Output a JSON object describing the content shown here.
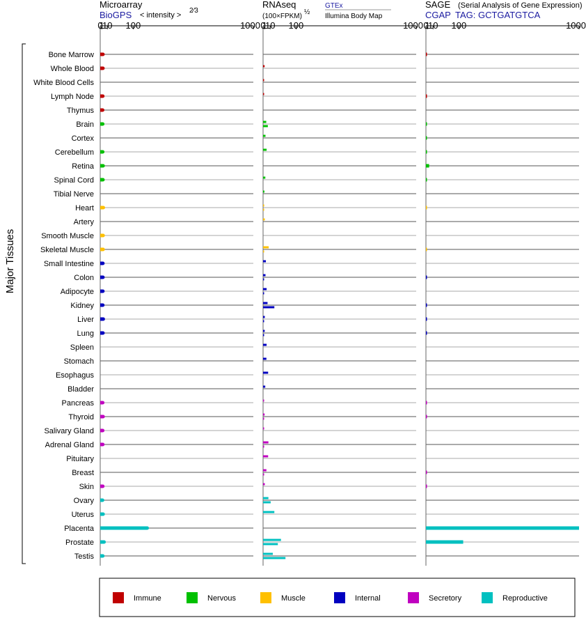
{
  "panels": {
    "microarray": {
      "title": "Microarray",
      "source": "BioGPS",
      "scale_label": "< intensity >",
      "exponent": "2⁄3"
    },
    "rnaseq": {
      "title": "RNAseq",
      "units": "(100×FPKM)",
      "exponent": "½",
      "source1": "GTEx",
      "source2": "Illumina Body Map"
    },
    "sage": {
      "title": "SAGE",
      "subtitle": "(Serial Analysis of Gene Expression)",
      "source": "CGAP",
      "tag": "TAG: GCTGATGTCA"
    }
  },
  "y_axis_label": "Major Tissues",
  "colors": {
    "Immune": "#c00000",
    "Nervous": "#00c000",
    "Muscle": "#ffc000",
    "Internal": "#0000c0",
    "Secretory": "#c000c0",
    "Reproductive": "#00c0c0"
  },
  "legend": [
    "Immune",
    "Nervous",
    "Muscle",
    "Internal",
    "Secretory",
    "Reproductive"
  ],
  "chart_data": {
    "type": "bar",
    "orientation": "horizontal",
    "x_scale": "power(2/3)",
    "xlim": [
      0,
      1000
    ],
    "x_ticks": [
      "0",
      "1",
      "10",
      "100",
      "1000"
    ],
    "categories": [
      "Bone Marrow",
      "Whole Blood",
      "White Blood Cells",
      "Lymph Node",
      "Thymus",
      "Brain",
      "Cortex",
      "Cerebellum",
      "Retina",
      "Spinal Cord",
      "Tibial Nerve",
      "Heart",
      "Artery",
      "Smooth Muscle",
      "Skeletal Muscle",
      "Small Intestine",
      "Colon",
      "Adipocyte",
      "Kidney",
      "Liver",
      "Lung",
      "Spleen",
      "Stomach",
      "Esophagus",
      "Bladder",
      "Pancreas",
      "Thyroid",
      "Salivary Gland",
      "Adrenal Gland",
      "Pituitary",
      "Breast",
      "Skin",
      "Ovary",
      "Uterus",
      "Placenta",
      "Prostate",
      "Testis"
    ],
    "groups": [
      "Immune",
      "Immune",
      "Immune",
      "Immune",
      "Immune",
      "Nervous",
      "Nervous",
      "Nervous",
      "Nervous",
      "Nervous",
      "Nervous",
      "Muscle",
      "Muscle",
      "Muscle",
      "Muscle",
      "Internal",
      "Internal",
      "Internal",
      "Internal",
      "Internal",
      "Internal",
      "Internal",
      "Internal",
      "Internal",
      "Internal",
      "Secretory",
      "Secretory",
      "Secretory",
      "Secretory",
      "Secretory",
      "Secretory",
      "Secretory",
      "Reproductive",
      "Reproductive",
      "Reproductive",
      "Reproductive",
      "Reproductive"
    ],
    "series": [
      {
        "name": "Microarray",
        "values": [
          2.4,
          2.4,
          null,
          2.2,
          2.0,
          2.1,
          null,
          2.1,
          2.6,
          2.4,
          null,
          2.9,
          null,
          2.6,
          2.6,
          2.3,
          2.4,
          2.3,
          2.2,
          2.8,
          2.4,
          null,
          null,
          null,
          null,
          2.1,
          2.6,
          2.1,
          2.2,
          null,
          null,
          2.2,
          1.9,
          2.6,
          170,
          4.0,
          2.2
        ]
      },
      {
        "name": "GTEx",
        "values": [
          null,
          1.0,
          0.03,
          0.03,
          null,
          3.0,
          2.0,
          3.5,
          null,
          1.8,
          0.8,
          0.6,
          1.2,
          null,
          7.0,
          2.5,
          2.0,
          3.5,
          5.0,
          1.2,
          1.1,
          3.5,
          3.2,
          6.0,
          1.7,
          0.5,
          1.0,
          0.03,
          6.5,
          6.0,
          3.2,
          1.2,
          6.5,
          20,
          null,
          40,
          16
        ]
      },
      {
        "name": "Illumina Body Map",
        "values": [
          null,
          null,
          null,
          null,
          null,
          5.5,
          null,
          null,
          null,
          null,
          null,
          0.03,
          null,
          null,
          0.03,
          null,
          0.03,
          0.03,
          20,
          0.03,
          0.03,
          null,
          null,
          null,
          null,
          null,
          0.03,
          null,
          0.03,
          null,
          0.03,
          null,
          11,
          null,
          null,
          30,
          56
        ]
      },
      {
        "name": "SAGE",
        "values": [
          0.02,
          null,
          null,
          0.02,
          null,
          0.02,
          0.02,
          0.02,
          3.0,
          0.02,
          null,
          0.02,
          null,
          null,
          0.02,
          null,
          0.02,
          null,
          0.02,
          0.02,
          0.02,
          null,
          null,
          null,
          null,
          0.02,
          0.02,
          null,
          null,
          null,
          0.02,
          0.02,
          null,
          null,
          1000,
          120,
          null
        ]
      }
    ]
  }
}
